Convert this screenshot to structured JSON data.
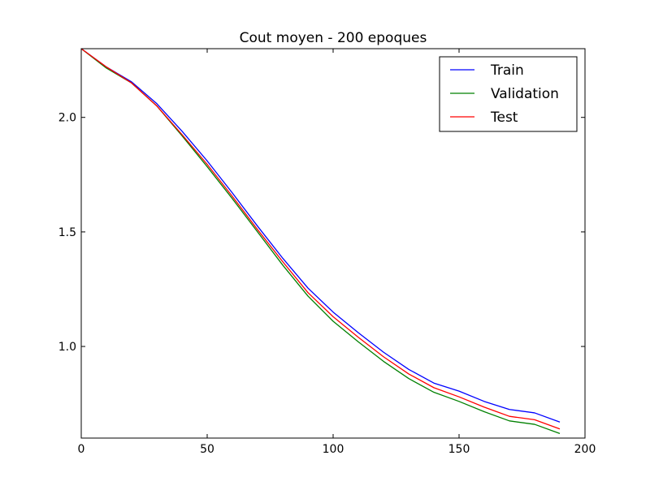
{
  "chart_data": {
    "type": "line",
    "title": "Cout moyen - 200 epoques",
    "xlabel": "",
    "ylabel": "",
    "xlim": [
      0,
      200
    ],
    "ylim": [
      0.6,
      2.3
    ],
    "xticks": [
      0,
      50,
      100,
      150,
      200
    ],
    "yticks": [
      1.0,
      1.5,
      2.0
    ],
    "xtick_labels": [
      "0",
      "50",
      "100",
      "150",
      "200"
    ],
    "ytick_labels": [
      "1.0",
      "1.5",
      "2.0"
    ],
    "grid": false,
    "legend_position": "top-right",
    "x": [
      0,
      10,
      20,
      30,
      40,
      50,
      60,
      70,
      80,
      90,
      100,
      110,
      120,
      130,
      140,
      150,
      160,
      170,
      180,
      190
    ],
    "series": [
      {
        "name": "Train",
        "color": "#0000ff",
        "values": [
          2.3,
          2.22,
          2.155,
          2.06,
          1.94,
          1.81,
          1.67,
          1.525,
          1.385,
          1.255,
          1.15,
          1.06,
          0.975,
          0.9,
          0.84,
          0.805,
          0.76,
          0.725,
          0.71,
          0.67
        ]
      },
      {
        "name": "Validation",
        "color": "#008000",
        "values": [
          2.3,
          2.215,
          2.15,
          2.05,
          1.92,
          1.785,
          1.645,
          1.5,
          1.355,
          1.22,
          1.11,
          1.02,
          0.935,
          0.86,
          0.8,
          0.76,
          0.715,
          0.675,
          0.66,
          0.62
        ]
      },
      {
        "name": "Test",
        "color": "#ff0000",
        "values": [
          2.3,
          2.22,
          2.15,
          2.05,
          1.925,
          1.795,
          1.655,
          1.51,
          1.37,
          1.235,
          1.13,
          1.04,
          0.955,
          0.88,
          0.82,
          0.78,
          0.735,
          0.695,
          0.68,
          0.64
        ]
      }
    ]
  }
}
